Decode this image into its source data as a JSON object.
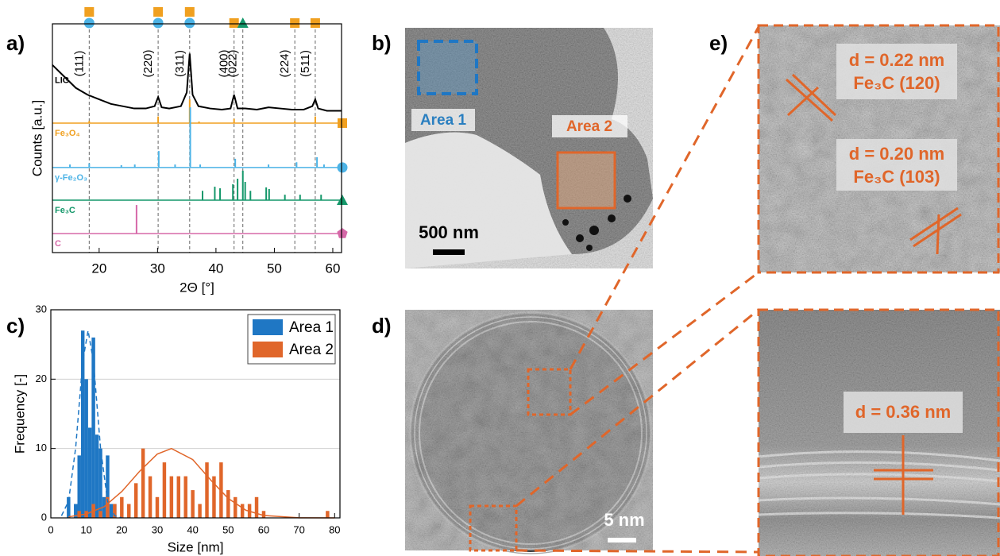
{
  "panels": {
    "a": "a)",
    "b": "b)",
    "c": "c)",
    "d": "d)",
    "e": "e)"
  },
  "chart_data": [
    {
      "type": "line",
      "xlabel": "2Θ [°]",
      "ylabel": "Counts [a.u.]",
      "xlim": [
        12,
        61.5
      ],
      "xticks": [
        20,
        30,
        40,
        50,
        60
      ],
      "ylim": [
        0,
        100
      ],
      "annotations": [
        {
          "text": "(111)",
          "x": 18.3
        },
        {
          "text": "(220)",
          "x": 30.1
        },
        {
          "text": "(311)",
          "x": 35.5
        },
        {
          "text": "(400)",
          "x": 43.1
        },
        {
          "text": "(022)",
          "x": 44.6
        },
        {
          "text": "(224)",
          "x": 53.5
        },
        {
          "text": "(511)",
          "x": 57.0
        }
      ],
      "series": [
        {
          "name": "LIG",
          "color": "#000000",
          "type": "line",
          "x": [
            12,
            14,
            16,
            18,
            20,
            22,
            24,
            26,
            28,
            29.5,
            30.1,
            30.7,
            32,
            34,
            35,
            35.5,
            36,
            37,
            39,
            41,
            42.5,
            43.1,
            43.7,
            45,
            47,
            49,
            51,
            53,
            55,
            56.5,
            57,
            57.5,
            59,
            61.5
          ],
          "values": [
            82,
            77,
            72,
            69,
            67,
            65,
            64,
            63,
            63,
            64,
            68,
            63.5,
            63,
            64,
            70,
            87,
            69,
            64,
            63,
            62.5,
            63,
            69,
            63,
            63,
            62.5,
            63.5,
            63,
            62.5,
            62.5,
            64,
            67,
            63,
            62,
            62
          ]
        },
        {
          "name": "Fe₃O₄",
          "color": "#f0a020",
          "type": "stick",
          "offset": 56.6,
          "x": [
            18.3,
            30.1,
            35.5,
            37.1,
            43.1,
            53.5,
            57.0
          ],
          "values": [
            57.5,
            59.5,
            67,
            57.3,
            58.5,
            57.5,
            59.5
          ]
        },
        {
          "name": "γ-Fe₂O₃",
          "color": "#4cb3e6",
          "type": "stick",
          "offset": 37.2,
          "x": [
            15,
            18.3,
            23.8,
            26.1,
            30.2,
            33,
            35.6,
            37.3,
            43.3,
            49,
            53.8,
            57.3,
            58.5
          ],
          "values": [
            38.5,
            39,
            38.2,
            38.5,
            44.4,
            38.5,
            63.5,
            38.5,
            41,
            38.5,
            39.5,
            41.7,
            38.5
          ]
        },
        {
          "name": "Fe₃C",
          "color": "#14976a",
          "type": "stick",
          "offset": 22.9,
          "x": [
            37.7,
            39.8,
            40.7,
            42.9,
            43.7,
            44.6,
            45.0,
            45.9,
            48.6,
            49.1,
            51.8,
            54.4,
            58.0
          ],
          "values": [
            27,
            28.8,
            28.1,
            29.9,
            32.3,
            35.8,
            30.9,
            27,
            28.5,
            27.8,
            25.3,
            25.3,
            25.3
          ]
        },
        {
          "name": "C",
          "color": "#d668a8",
          "type": "stick",
          "offset": 8.3,
          "x": [
            26.4
          ],
          "values": [
            20.8
          ]
        }
      ]
    },
    {
      "type": "bar",
      "xlabel": "Size [nm]",
      "ylabel": "Frequency [-]",
      "xlim": [
        0,
        81.5
      ],
      "xticks": [
        0,
        10,
        20,
        30,
        40,
        50,
        60,
        70,
        80
      ],
      "ylim": [
        0,
        30
      ],
      "yticks": [
        0,
        10,
        20,
        30
      ],
      "grid": "y",
      "legend": "upper right",
      "series": [
        {
          "name": "Area 1",
          "color": "#1f77c4",
          "x": [
            5,
            7,
            8,
            9,
            10,
            11,
            12,
            13,
            14,
            15,
            16,
            17,
            18
          ],
          "values": [
            3,
            2,
            9,
            27,
            20,
            13,
            26,
            12,
            10,
            3,
            9,
            2,
            2
          ]
        },
        {
          "name": "Area 2",
          "color": "#e0662a",
          "x": [
            8,
            10,
            12,
            14,
            16,
            18,
            20,
            22,
            24,
            26,
            28,
            30,
            32,
            34,
            36,
            38,
            40,
            42,
            44,
            46,
            48,
            50,
            52,
            54,
            56,
            58,
            60,
            78
          ],
          "values": [
            1,
            1,
            2,
            1,
            3,
            2,
            3,
            2,
            5,
            10,
            6,
            3,
            8,
            6,
            6,
            6,
            4,
            2,
            8,
            6,
            8,
            4,
            3,
            2,
            2,
            3,
            1,
            1
          ]
        }
      ],
      "fits": [
        {
          "color": "#1f77c4",
          "dashed": true,
          "x": [
            3,
            5,
            7,
            9,
            10.5,
            12,
            14,
            16,
            18,
            20
          ],
          "values": [
            0.3,
            2.4,
            10.1,
            22.6,
            27,
            22.6,
            10.1,
            2.4,
            0.3,
            0.02
          ]
        },
        {
          "color": "#e0662a",
          "dashed": false,
          "x": [
            5,
            10,
            15,
            20,
            25,
            30,
            34,
            40,
            45,
            50,
            55,
            60,
            70,
            80
          ],
          "values": [
            0.15,
            0.56,
            1.6,
            3.8,
            6.7,
            9.2,
            10,
            8.4,
            5.5,
            2.8,
            1.1,
            0.34,
            0.015,
            0.001
          ]
        }
      ]
    }
  ],
  "images": {
    "b": {
      "area_1": "Area 1",
      "area_2": "Area 2",
      "scale_bar": "500 nm"
    },
    "d": {
      "scale_bar": "5 nm"
    },
    "e": {
      "top": {
        "spacing_1": "d = 0.22 nm",
        "plane_1": "Fe₃C (120)",
        "spacing_2": "d = 0.20 nm",
        "plane_2": "Fe₃C (103)"
      },
      "bottom": {
        "spacing": "d = 0.36 nm"
      }
    }
  }
}
